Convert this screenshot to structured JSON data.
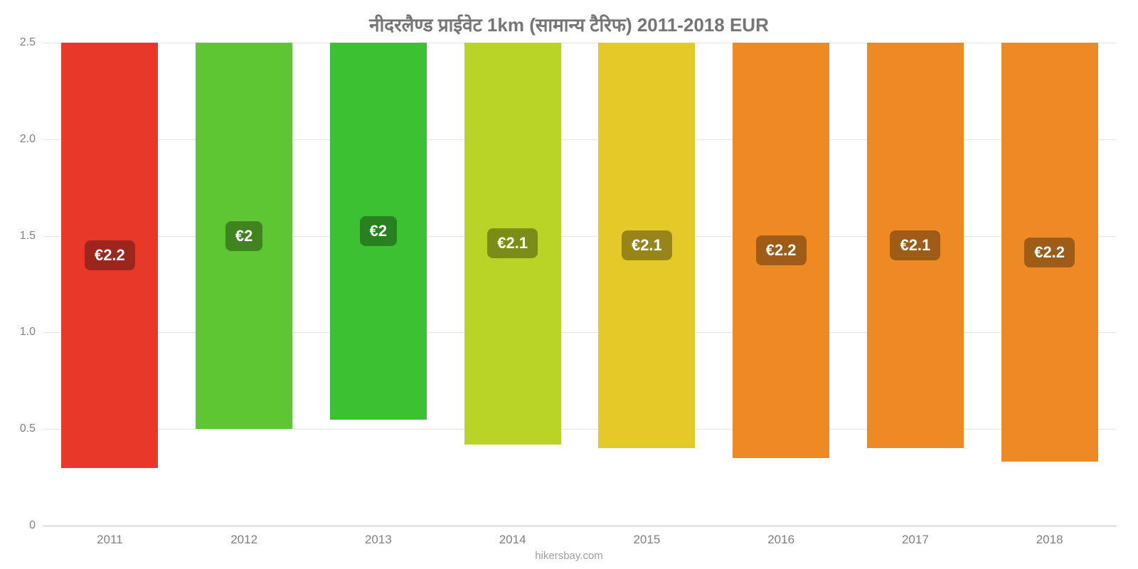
{
  "chart": {
    "type": "bar",
    "title": "नीदरलैण्ड   प्राईवेट   1km (सामान्य   टैरिफ) 2011-2018 EUR",
    "title_fontsize": 26,
    "title_color": "#757575",
    "background_color": "#ffffff",
    "grid_color": "#e6e6e6",
    "axis_color": "#c0c0c0",
    "tick_color": "#808080",
    "tick_fontsize": 16,
    "ylim": [
      0,
      2.5
    ],
    "yticks": [
      0,
      0.5,
      1.0,
      1.5,
      2.0,
      2.5
    ],
    "ytick_labels": [
      "0",
      "0.5",
      "1.0",
      "1.5",
      "2.0",
      "2.5"
    ],
    "categories": [
      "2011",
      "2012",
      "2013",
      "2014",
      "2015",
      "2016",
      "2017",
      "2018"
    ],
    "values": [
      2.2,
      2.0,
      1.95,
      2.08,
      2.1,
      2.15,
      2.1,
      2.17
    ],
    "value_labels": [
      "€2.2",
      "€2",
      "€2",
      "€2.1",
      "€2.1",
      "€2.2",
      "€2.1",
      "€2.2"
    ],
    "bar_colors": [
      "#e7382a",
      "#5ec632",
      "#3cc132",
      "#b9d326",
      "#e4c927",
      "#ee8a24",
      "#ee8a24",
      "#ee8a24"
    ],
    "label_bg_colors": [
      "#9a261d",
      "#3f841f",
      "#28801f",
      "#7b8c18",
      "#978519",
      "#9e5c16",
      "#9e5c16",
      "#9e5c16"
    ],
    "label_text_color": "#ffffff",
    "label_fontsize": 22,
    "bar_width": 0.72,
    "footer": "hikersbay.com",
    "footer_color": "#9e9e9e"
  }
}
